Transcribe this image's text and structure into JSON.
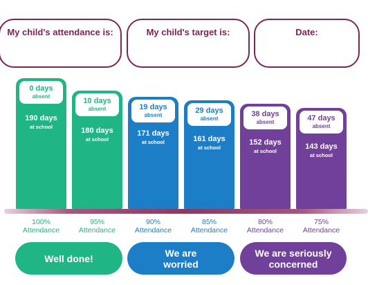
{
  "header": {
    "attendance_label": "My child's attendance is:",
    "target_label": "My child's target is:",
    "date_label": "Date:"
  },
  "colors": {
    "green": "#1fb585",
    "blue": "#1c7ec7",
    "purple": "#71409a",
    "maroon": "#7b2554"
  },
  "bars": [
    {
      "absent_days": "0 days",
      "absent_word": "absent",
      "school_days": "190 days",
      "school_word": "at school",
      "percent": "100%",
      "attendance_word": "Attendance"
    },
    {
      "absent_days": "10 days",
      "absent_word": "absent",
      "school_days": "180 days",
      "school_word": "at school",
      "percent": "95%",
      "attendance_word": "Attendance"
    },
    {
      "absent_days": "19 days",
      "absent_word": "absent",
      "school_days": "171 days",
      "school_word": "at school",
      "percent": "90%",
      "attendance_word": "Attendance"
    },
    {
      "absent_days": "29 days",
      "absent_word": "absent",
      "school_days": "161 days",
      "school_word": "at school",
      "percent": "85%",
      "attendance_word": "Attendance"
    },
    {
      "absent_days": "38 days",
      "absent_word": "absent",
      "school_days": "152 days",
      "school_word": "at school",
      "percent": "80%",
      "attendance_word": "Attendance"
    },
    {
      "absent_days": "47 days",
      "absent_word": "absent",
      "school_days": "143 days",
      "school_word": "at school",
      "percent": "75%",
      "attendance_word": "Attendance"
    }
  ],
  "verdicts": {
    "well_done": "Well done!",
    "worried": "We are worried",
    "concerned": "We are seriously concerned"
  }
}
